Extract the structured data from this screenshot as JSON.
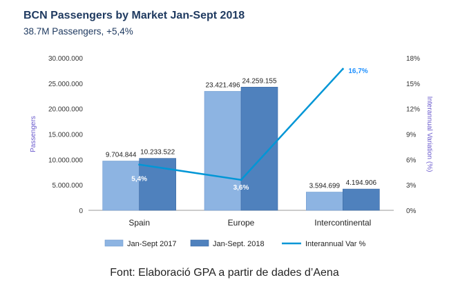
{
  "title": "BCN Passengers by Market Jan-Sept 2018",
  "subtitle": "38.7M Passengers, +5,4%",
  "source": "Font: Elaboració GPA a partir de dades d’Aena",
  "colors": {
    "series_2017": "#8db4e2",
    "series_2018": "#4f81bd",
    "var_line": "#0096d6",
    "axis_title": "#6a5acd",
    "line_label_last": "#1e90ff"
  },
  "chart_data": {
    "type": "bar",
    "categories": [
      "Spain",
      "Europe",
      "Intercontinental"
    ],
    "ylabel": "Passengers",
    "y2label": "Interannual Variation (%)",
    "ylim": [
      0,
      30000000
    ],
    "y2lim": [
      0,
      18
    ],
    "yticks": [
      "0",
      "5.000.000",
      "10.000.000",
      "15.000.000",
      "20.000.000",
      "25.000.000",
      "30.000.000"
    ],
    "y2ticks": [
      "0%",
      "3%",
      "6%",
      "9%",
      "12%",
      "15%",
      "18%"
    ],
    "series": [
      {
        "name": "Jan-Sept 2017",
        "values": [
          9704844,
          23421496,
          3594699
        ],
        "labels": [
          "9.704.844",
          "23.421.496",
          "3.594.699"
        ]
      },
      {
        "name": "Jan-Sept. 2018",
        "values": [
          10233522,
          24259155,
          4194906
        ],
        "labels": [
          "10.233.522",
          "24.259.155",
          "4.194.906"
        ]
      }
    ],
    "line": {
      "name": "Interannual Var %",
      "values": [
        5.4,
        3.6,
        16.7
      ],
      "labels": [
        "5,4%",
        "3,6%",
        "16,7%"
      ]
    },
    "legend": "bottom",
    "grid": false
  }
}
